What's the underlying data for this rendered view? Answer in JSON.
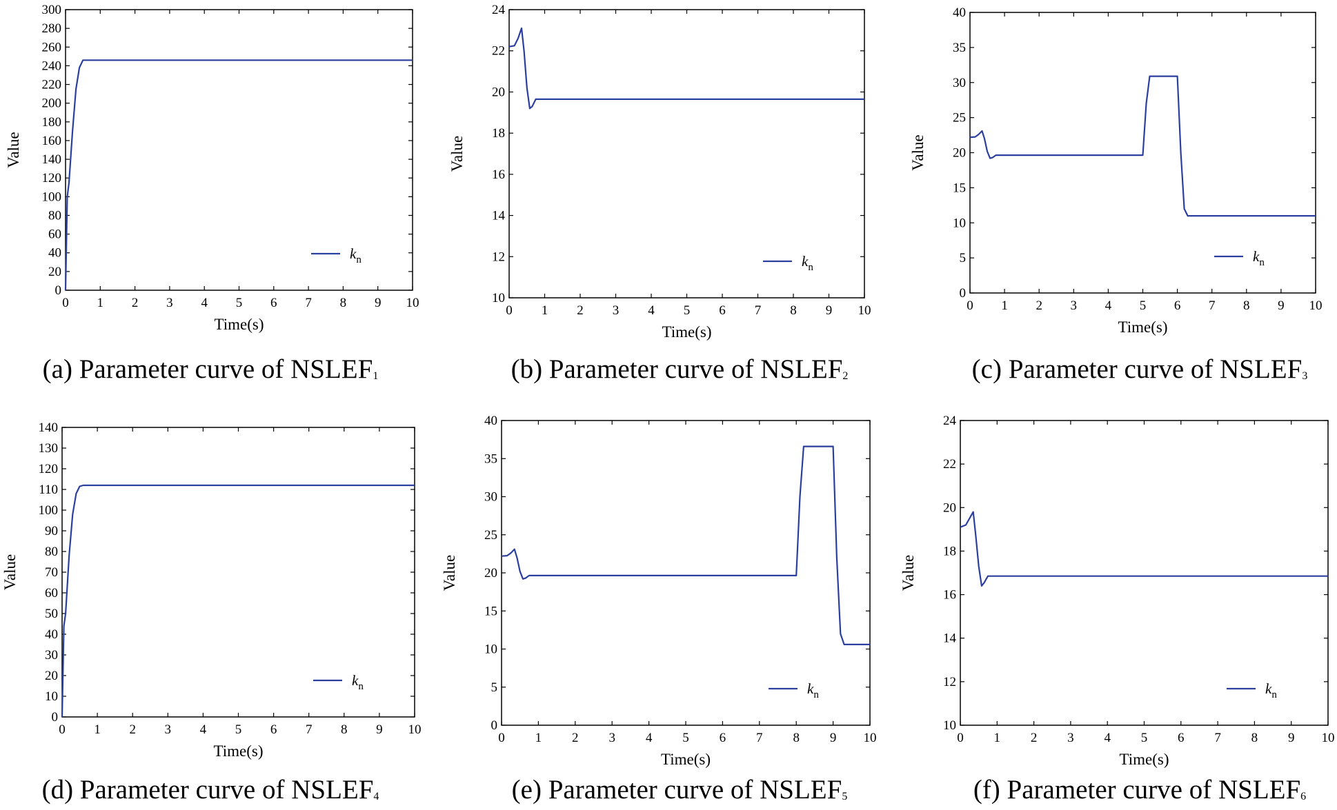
{
  "series_color": "#2b3f9e",
  "chart_data": [
    {
      "type": "line",
      "caption_prefix": "(a) Parameter curve of NSLEF",
      "caption_sub": "1",
      "xlabel": "Time(s)",
      "ylabel": "Value",
      "xlim": [
        0,
        10
      ],
      "ylim": [
        0,
        300
      ],
      "xticks": [
        "0",
        "1",
        "2",
        "3",
        "4",
        "5",
        "6",
        "7",
        "8",
        "9",
        "10"
      ],
      "yticks": [
        "0",
        "20",
        "40",
        "60",
        "80",
        "100",
        "120",
        "140",
        "160",
        "180",
        "200",
        "220",
        "240",
        "260",
        "280",
        "300"
      ],
      "legend": {
        "symbol": "k",
        "sub": "n",
        "position": "bottom-right"
      },
      "series": [
        {
          "name": "kn",
          "x": [
            0,
            0.05,
            0.1,
            0.2,
            0.3,
            0.4,
            0.5,
            0.6,
            1,
            10
          ],
          "y": [
            0,
            100,
            115,
            170,
            215,
            238,
            246,
            246,
            246,
            246
          ]
        }
      ]
    },
    {
      "type": "line",
      "caption_prefix": "(b) Parameter curve of NSLEF",
      "caption_sub": "2",
      "xlabel": "Time(s)",
      "ylabel": "Value",
      "xlim": [
        0,
        10
      ],
      "ylim": [
        10,
        24
      ],
      "xticks": [
        "0",
        "1",
        "2",
        "3",
        "4",
        "5",
        "6",
        "7",
        "8",
        "9",
        "10"
      ],
      "yticks": [
        "10",
        "12",
        "14",
        "16",
        "18",
        "20",
        "22",
        "24"
      ],
      "legend": {
        "symbol": "k",
        "sub": "n",
        "position": "bottom-right"
      },
      "series": [
        {
          "name": "kn",
          "x": [
            0,
            0.15,
            0.25,
            0.35,
            0.42,
            0.5,
            0.58,
            0.65,
            0.75,
            1,
            10
          ],
          "y": [
            22.2,
            22.25,
            22.6,
            23.1,
            22.0,
            20.2,
            19.2,
            19.3,
            19.65,
            19.65,
            19.65
          ]
        }
      ]
    },
    {
      "type": "line",
      "caption_prefix": "(c) Parameter curve of NSLEF",
      "caption_sub": "3",
      "xlabel": "Time(s)",
      "ylabel": "Value",
      "xlim": [
        0,
        10
      ],
      "ylim": [
        0,
        40
      ],
      "xticks": [
        "0",
        "1",
        "2",
        "3",
        "4",
        "5",
        "6",
        "7",
        "8",
        "9",
        "10"
      ],
      "yticks": [
        "0",
        "5",
        "10",
        "15",
        "20",
        "25",
        "30",
        "35",
        "40"
      ],
      "legend": {
        "symbol": "k",
        "sub": "n",
        "position": "bottom-right"
      },
      "series": [
        {
          "name": "kn",
          "x": [
            0,
            0.15,
            0.25,
            0.35,
            0.42,
            0.5,
            0.58,
            0.65,
            0.75,
            1,
            5,
            5.1,
            5.2,
            5.3,
            6,
            6.1,
            6.2,
            6.3,
            10
          ],
          "y": [
            22.2,
            22.25,
            22.6,
            23.1,
            22.0,
            20.2,
            19.2,
            19.3,
            19.65,
            19.65,
            19.65,
            27,
            30.9,
            30.9,
            30.9,
            20,
            12,
            11,
            11
          ]
        }
      ]
    },
    {
      "type": "line",
      "caption_prefix": "(d) Parameter curve of NSLEF",
      "caption_sub": "4",
      "xlabel": "Time(s)",
      "ylabel": "Value",
      "xlim": [
        0,
        10
      ],
      "ylim": [
        0,
        140
      ],
      "xticks": [
        "0",
        "1",
        "2",
        "3",
        "4",
        "5",
        "6",
        "7",
        "8",
        "9",
        "10"
      ],
      "yticks": [
        "0",
        "10",
        "20",
        "30",
        "40",
        "50",
        "60",
        "70",
        "80",
        "90",
        "100",
        "110",
        "120",
        "130",
        "140"
      ],
      "legend": {
        "symbol": "k",
        "sub": "n",
        "position": "bottom-right"
      },
      "series": [
        {
          "name": "kn",
          "x": [
            0,
            0.05,
            0.1,
            0.2,
            0.3,
            0.4,
            0.5,
            0.6,
            1,
            10
          ],
          "y": [
            0,
            44,
            50,
            78,
            98,
            108,
            111.5,
            112,
            112,
            112
          ]
        }
      ]
    },
    {
      "type": "line",
      "caption_prefix": "(e) Parameter curve of NSLEF",
      "caption_sub": "5",
      "xlabel": "Time(s)",
      "ylabel": "Value",
      "xlim": [
        0,
        10
      ],
      "ylim": [
        0,
        40
      ],
      "xticks": [
        "0",
        "1",
        "2",
        "3",
        "4",
        "5",
        "6",
        "7",
        "8",
        "9",
        "10"
      ],
      "yticks": [
        "0",
        "5",
        "10",
        "15",
        "20",
        "25",
        "30",
        "35",
        "40"
      ],
      "legend": {
        "symbol": "k",
        "sub": "n",
        "position": "bottom-right"
      },
      "series": [
        {
          "name": "kn",
          "x": [
            0,
            0.15,
            0.25,
            0.35,
            0.42,
            0.5,
            0.58,
            0.65,
            0.75,
            1,
            8,
            8.1,
            8.2,
            8.3,
            9,
            9.1,
            9.2,
            9.3,
            10
          ],
          "y": [
            22.2,
            22.25,
            22.6,
            23.1,
            22.0,
            20.2,
            19.2,
            19.3,
            19.65,
            19.65,
            19.65,
            30,
            36.6,
            36.6,
            36.6,
            22,
            12,
            10.6,
            10.6
          ]
        }
      ]
    },
    {
      "type": "line",
      "caption_prefix": "(f) Parameter curve of NSLEF",
      "caption_sub": "6",
      "xlabel": "Time(s)",
      "ylabel": "Value",
      "xlim": [
        0,
        10
      ],
      "ylim": [
        10,
        24
      ],
      "xticks": [
        "0",
        "1",
        "2",
        "3",
        "4",
        "5",
        "6",
        "7",
        "8",
        "9",
        "10"
      ],
      "yticks": [
        "10",
        "12",
        "14",
        "16",
        "18",
        "20",
        "22",
        "24"
      ],
      "legend": {
        "symbol": "k",
        "sub": "n",
        "position": "bottom-right"
      },
      "series": [
        {
          "name": "kn",
          "x": [
            0,
            0.15,
            0.25,
            0.35,
            0.42,
            0.5,
            0.58,
            0.65,
            0.75,
            1,
            10
          ],
          "y": [
            19.1,
            19.2,
            19.5,
            19.8,
            18.7,
            17.3,
            16.4,
            16.55,
            16.85,
            16.85,
            16.85
          ]
        }
      ]
    }
  ]
}
